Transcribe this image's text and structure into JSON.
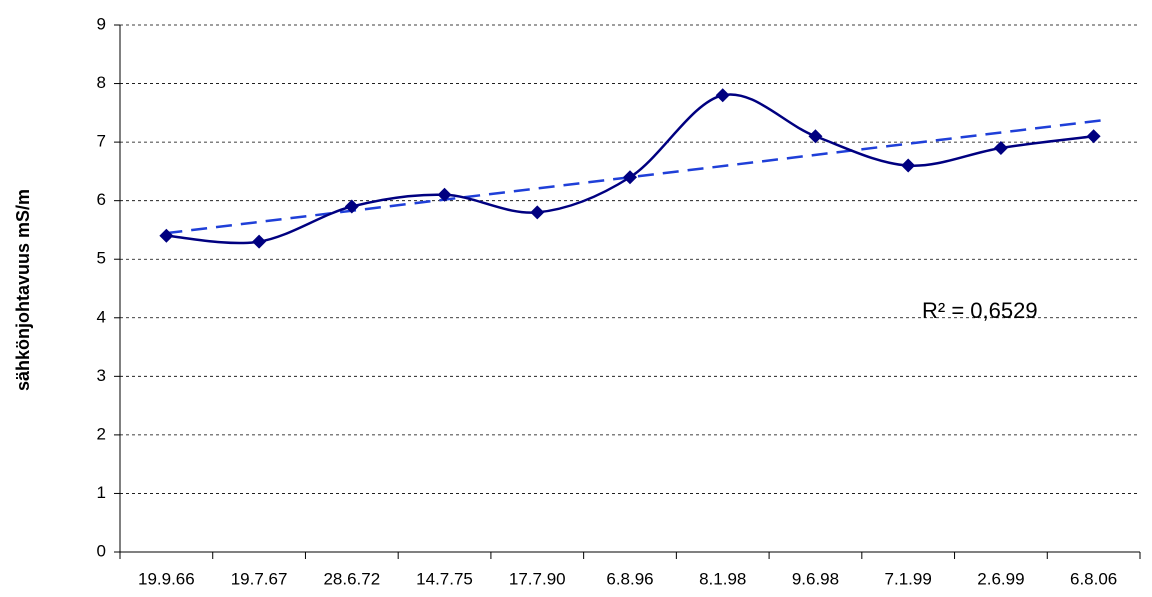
{
  "chart_data": {
    "type": "line",
    "y_label": "sähkönjohtavuus mS/m",
    "categories": [
      "19.9.66",
      "19.7.67",
      "28.6.72",
      "14.7.75",
      "17.7.90",
      "6.8.96",
      "8.1.98",
      "9.6.98",
      "7.1.99",
      "2.6.99",
      "6.8.06"
    ],
    "series": [
      {
        "color": "#000080",
        "values": [
          5.4,
          5.3,
          5.9,
          6.1,
          5.8,
          6.4,
          7.8,
          7.1,
          6.6,
          6.9,
          7.1
        ]
      }
    ],
    "trendline": {
      "type": "linear",
      "color": "#1f3fd8"
    },
    "annotation": "R² = 0,6529",
    "ylim": [
      0,
      9
    ],
    "yticks": [
      0,
      1,
      2,
      3,
      4,
      5,
      6,
      7,
      8,
      9
    ],
    "grid": true
  }
}
